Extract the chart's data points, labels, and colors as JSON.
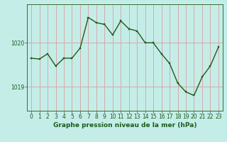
{
  "x": [
    0,
    1,
    2,
    3,
    4,
    5,
    6,
    7,
    8,
    9,
    10,
    11,
    12,
    13,
    14,
    15,
    16,
    17,
    18,
    19,
    20,
    21,
    22,
    23
  ],
  "y": [
    1019.65,
    1019.63,
    1019.75,
    1019.47,
    1019.65,
    1019.65,
    1019.88,
    1020.58,
    1020.46,
    1020.42,
    1020.18,
    1020.5,
    1020.32,
    1020.27,
    1020.0,
    1020.0,
    1019.75,
    1019.53,
    1019.08,
    1018.88,
    1018.8,
    1019.22,
    1019.47,
    1019.9
  ],
  "line_color": "#1a5c1a",
  "marker_color": "#1a5c1a",
  "bg_color": "#c5ede8",
  "grid_color": "#d8a8a8",
  "axis_color": "#1a5c1a",
  "label_color": "#1a5c1a",
  "xlabel": "Graphe pression niveau de la mer (hPa)",
  "ytick_labels": [
    "1019",
    "1020"
  ],
  "ytick_values": [
    1019.0,
    1020.0
  ],
  "ylim": [
    1018.45,
    1020.88
  ],
  "xlim": [
    -0.5,
    23.5
  ],
  "xlabel_fontsize": 6.5,
  "tick_fontsize": 5.5,
  "linewidth": 1.0,
  "markersize": 2.0
}
